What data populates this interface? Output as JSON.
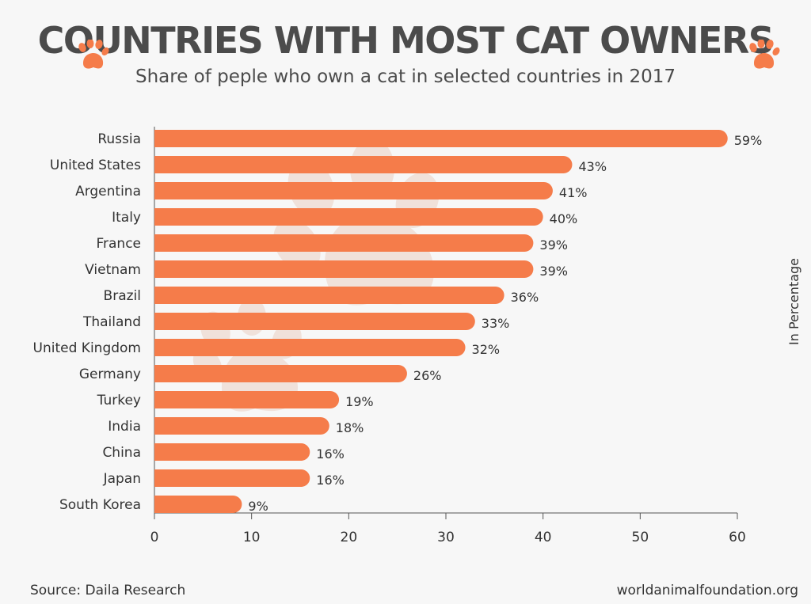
{
  "header": {
    "title": "COUNTRIES WITH MOST CAT OWNERS",
    "subtitle": "Share of peple who own a cat in selected countries in 2017"
  },
  "footer": {
    "source": "Source: Daila Research",
    "website": "worldanimalfoundation.org"
  },
  "colors": {
    "bar": "#f57c4a",
    "text": "#333333",
    "title": "#4b4b4b",
    "watermark": "#e8d4cc"
  },
  "icons": {
    "left": "paw-icon",
    "right": "paw-icon"
  },
  "chart_data": {
    "type": "bar",
    "orientation": "horizontal",
    "categories": [
      "Russia",
      "United States",
      "Argentina",
      "Italy",
      "France",
      "Vietnam",
      "Brazil",
      "Thailand",
      "United Kingdom",
      "Germany",
      "Turkey",
      "India",
      "China",
      "Japan",
      "South Korea"
    ],
    "values": [
      59,
      43,
      41,
      40,
      39,
      39,
      36,
      33,
      32,
      26,
      19,
      18,
      16,
      16,
      9
    ],
    "value_labels": [
      "59%",
      "43%",
      "41%",
      "40%",
      "39%",
      "39%",
      "36%",
      "33%",
      "32%",
      "26%",
      "19%",
      "18%",
      "16%",
      "16%",
      "9%"
    ],
    "xlim": [
      0,
      60
    ],
    "xticks": [
      0,
      10,
      20,
      30,
      40,
      50,
      60
    ],
    "xtick_labels": [
      "0",
      "10",
      "20",
      "30",
      "40",
      "50",
      "60"
    ],
    "ylabel": "In Percentage",
    "grid": false
  }
}
